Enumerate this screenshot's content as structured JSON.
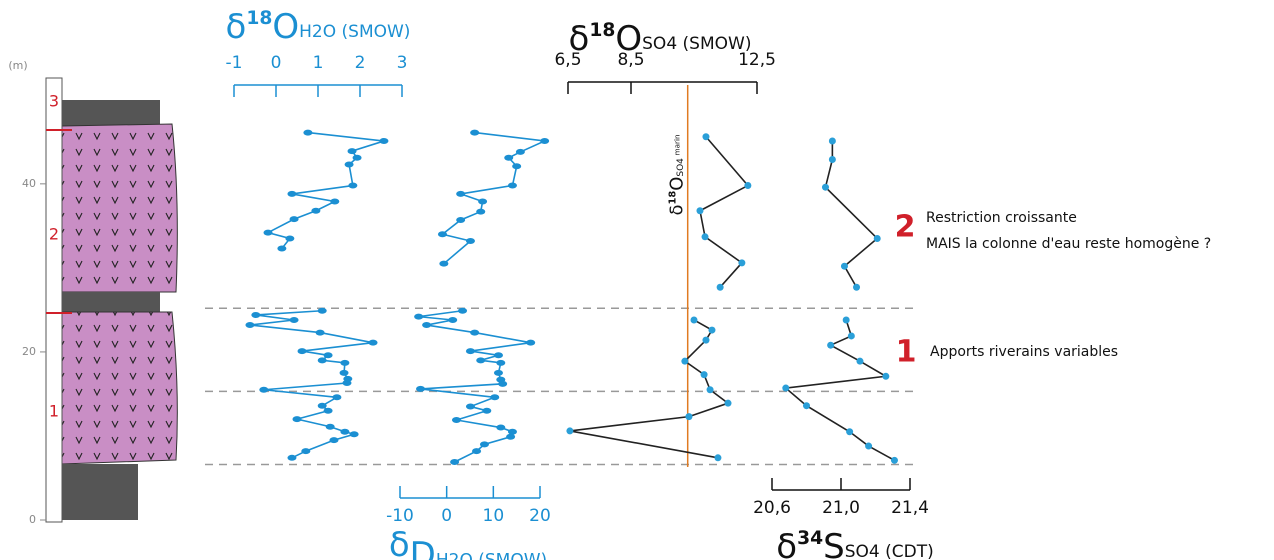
{
  "depth_axis": {
    "label": "(m)",
    "ylim": [
      0,
      52
    ],
    "yticks": [
      0,
      20,
      40
    ],
    "horizons": [
      25.2,
      15.3,
      6.6
    ]
  },
  "column": {
    "units": [
      "1",
      "2",
      "3"
    ]
  },
  "annotations": [
    {
      "number": "2",
      "lines": [
        "Restriction croissante",
        "MAIS la colonne d'eau reste homogène ?"
      ]
    },
    {
      "number": "1",
      "lines": [
        "Apports riverains variables"
      ]
    }
  ],
  "chart_data": [
    {
      "type": "line",
      "title": [
        "δ",
        "18",
        "O",
        "H2O (SMOW)"
      ],
      "axis_position": "top",
      "title_color": "#1b8fd2",
      "xlim": [
        -1,
        3
      ],
      "xticks": [
        -1,
        0,
        1,
        2,
        3
      ],
      "line_color": "#1b8fd2",
      "marker_color": "#1b8fd2",
      "marker": "ellipse",
      "values": [
        0.76,
        2.57,
        1.81,
        1.93,
        1.74,
        1.83,
        0.38,
        1.4,
        0.95,
        0.43,
        -0.19,
        0.33,
        0.14,
        null,
        1.1,
        -0.48,
        0.43,
        -0.62,
        1.05,
        2.31,
        0.62,
        1.24,
        1.1,
        1.64,
        1.62,
        1.71,
        1.69,
        -0.29,
        1.45,
        1.1,
        1.24,
        0.5,
        1.29,
        1.64,
        1.86,
        1.38,
        0.71,
        0.38
      ],
      "depth": [
        46.1,
        45.1,
        43.9,
        43.1,
        42.3,
        39.8,
        38.8,
        37.9,
        36.8,
        35.8,
        34.2,
        33.5,
        32.3,
        null,
        24.9,
        24.4,
        23.8,
        23.2,
        22.3,
        21.1,
        20.1,
        19.6,
        19.0,
        18.7,
        17.5,
        16.8,
        16.3,
        15.5,
        14.6,
        13.6,
        13.0,
        12.0,
        11.1,
        10.5,
        10.2,
        9.5,
        8.2,
        7.4
      ]
    },
    {
      "type": "line",
      "title": [
        "δ",
        "",
        "D",
        "H2O (SMOW)"
      ],
      "axis_position": "bottom",
      "title_color": "#1b8fd2",
      "xlim": [
        -10,
        20
      ],
      "xticks": [
        -10,
        0,
        10,
        20
      ],
      "line_color": "#1b8fd2",
      "marker_color": "#1b8fd2",
      "marker": "ellipse",
      "values": [
        6.0,
        21.0,
        15.8,
        13.3,
        15.0,
        14.1,
        3.0,
        7.7,
        7.3,
        3.0,
        -0.9,
        5.1,
        -0.6,
        null,
        3.4,
        -6.0,
        1.3,
        -4.3,
        6.0,
        18.0,
        5.1,
        11.1,
        7.3,
        11.6,
        11.1,
        11.6,
        12.0,
        -5.6,
        10.3,
        5.1,
        8.6,
        2.1,
        11.6,
        14.1,
        13.7,
        8.1,
        6.4,
        1.7
      ],
      "depth": [
        46.1,
        45.1,
        43.8,
        43.1,
        42.1,
        39.8,
        38.8,
        37.9,
        36.7,
        35.7,
        34.0,
        33.2,
        30.5,
        null,
        24.9,
        24.2,
        23.8,
        23.2,
        22.3,
        21.1,
        20.1,
        19.6,
        19.0,
        18.7,
        17.5,
        16.7,
        16.2,
        15.6,
        14.6,
        13.5,
        13.0,
        11.9,
        11.0,
        10.5,
        9.9,
        9.0,
        8.2,
        6.9
      ]
    },
    {
      "type": "line",
      "title": [
        "δ",
        "18",
        "O",
        "SO4 (SMOW)"
      ],
      "axis_position": "top",
      "title_color": "#111111",
      "xlim": [
        6.5,
        12.5
      ],
      "xticks": [
        {
          "value": 6.5,
          "label": "6,5"
        },
        {
          "value": 8.5,
          "label": "8,5"
        },
        {
          "value": 12.5,
          "label": "12,5"
        }
      ],
      "line_color": "#222222",
      "marker_color": "#2a9fd8",
      "marker": "circle",
      "reference": {
        "value": 10.3,
        "label": [
          "δ",
          "18",
          "O",
          "SO4",
          "marin"
        ],
        "color": "#e07b22"
      },
      "values": [
        10.88,
        12.21,
        10.69,
        10.85,
        12.02,
        11.33,
        null,
        10.5,
        11.07,
        10.88,
        10.21,
        10.82,
        11.01,
        11.58,
        10.34,
        6.56,
        11.26
      ],
      "depth": [
        45.6,
        39.8,
        36.8,
        33.7,
        30.6,
        27.7,
        null,
        23.8,
        22.6,
        21.4,
        18.9,
        17.3,
        15.5,
        13.9,
        12.3,
        10.6,
        7.4
      ]
    },
    {
      "type": "line",
      "title": [
        "δ",
        "34",
        "S",
        "SO4 (CDT)"
      ],
      "axis_position": "bottom",
      "title_color": "#111111",
      "xlim": [
        20.6,
        21.4
      ],
      "xticks": [
        {
          "value": 20.6,
          "label": "20,6"
        },
        {
          "value": 21.0,
          "label": "21,0"
        },
        {
          "value": 21.4,
          "label": "21,4"
        }
      ],
      "line_color": "#222222",
      "marker_color": "#2a9fd8",
      "marker": "circle",
      "values": [
        20.95,
        20.95,
        20.91,
        21.21,
        21.02,
        21.09,
        null,
        21.03,
        21.06,
        20.94,
        21.11,
        21.26,
        20.68,
        20.8,
        21.05,
        21.16,
        21.31
      ],
      "depth": [
        45.1,
        42.9,
        39.6,
        33.5,
        30.2,
        27.7,
        null,
        23.8,
        21.9,
        20.8,
        18.9,
        17.1,
        15.7,
        13.6,
        10.5,
        8.8,
        7.1
      ]
    }
  ]
}
